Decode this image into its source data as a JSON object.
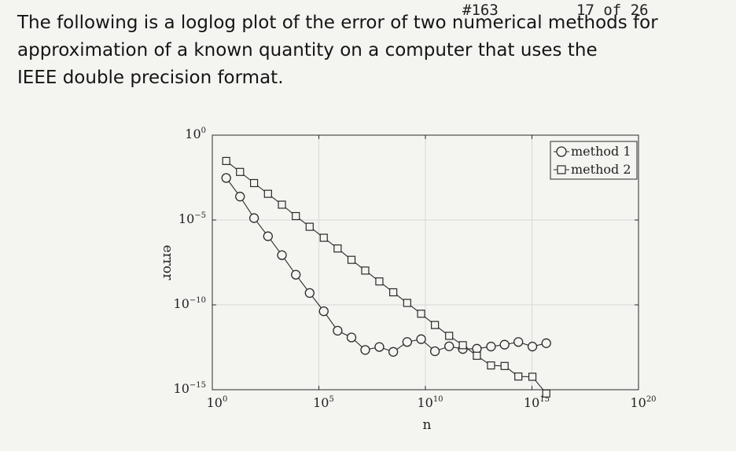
{
  "header": {
    "doc_id": "#163",
    "page_counter": "17 of 26"
  },
  "prose": {
    "lines": [
      "The following is a loglog plot of the error of two numerical methods for",
      "approximation of a known quantity on a computer that uses the",
      "IEEE double precision format."
    ]
  },
  "chart_data": {
    "type": "line",
    "xscale": "log",
    "yscale": "log",
    "xlabel": "n",
    "ylabel": "error",
    "xlim": [
      1,
      1e+20
    ],
    "ylim": [
      1e-15,
      1
    ],
    "xticks": [
      {
        "value": 1,
        "base": "10",
        "exp": "0"
      },
      {
        "value": 100000.0,
        "base": "10",
        "exp": "5"
      },
      {
        "value": 10000000000.0,
        "base": "10",
        "exp": "10"
      },
      {
        "value": 1000000000000000.0,
        "base": "10",
        "exp": "15"
      },
      {
        "value": 1e+20,
        "base": "10",
        "exp": "20"
      }
    ],
    "yticks": [
      {
        "value": 1,
        "base": "10",
        "exp": "0"
      },
      {
        "value": 1e-05,
        "base": "10",
        "exp": "−5"
      },
      {
        "value": 1e-10,
        "base": "10",
        "exp": "−10"
      },
      {
        "value": 1e-15,
        "base": "10",
        "exp": "−15"
      }
    ],
    "grid": true,
    "legend_position": "top-right",
    "series": [
      {
        "name": "method 1",
        "marker": "circle",
        "x": [
          4.5,
          20,
          91,
          410,
          1850,
          8300,
          37000,
          170000,
          760000,
          3400000.0,
          15000000.0,
          69000000.0,
          310000000.0,
          1400000000.0,
          6300000000.0,
          28000000000.0,
          130000000000.0,
          570000000000.0,
          2600000000000.0,
          12000000000000.0,
          52000000000000.0,
          230000000000000.0,
          1050000000000000.0,
          4700000000000000.0
        ],
        "y": [
          0.003,
          0.00024,
          1.3e-05,
          1.1e-06,
          8.5e-08,
          6e-09,
          5e-10,
          4.2e-11,
          3e-12,
          1.2e-12,
          2.2e-13,
          3.3e-13,
          1.7e-13,
          6.5e-13,
          9.5e-13,
          1.85e-13,
          3.6e-13,
          2.5e-13,
          2.6e-13,
          3.5e-13,
          4.5e-13,
          6.5e-13,
          3.5e-13,
          5.5e-13
        ]
      },
      {
        "name": "method 2",
        "marker": "square",
        "x": [
          4.5,
          20,
          91,
          410,
          1850,
          8300,
          37000,
          170000,
          760000,
          3400000.0,
          15000000.0,
          69000000.0,
          310000000.0,
          1400000000.0,
          6300000000.0,
          28000000000.0,
          130000000000.0,
          570000000000.0,
          2600000000000.0,
          12000000000000.0,
          52000000000000.0,
          230000000000000.0,
          1050000000000000.0,
          4700000000000000.0
        ],
        "y": [
          0.03,
          0.0068,
          0.0015,
          0.00035,
          8e-05,
          1.7e-05,
          4e-06,
          9e-07,
          2.1e-07,
          4.5e-08,
          1.05e-08,
          2.4e-09,
          5.5e-10,
          1.3e-10,
          3e-11,
          6.5e-12,
          1.5e-12,
          4.2e-13,
          1e-13,
          2.7e-14,
          2.5e-14,
          6e-15,
          5.8e-15,
          6e-16
        ]
      }
    ],
    "colors": {
      "line": "#2a2a2a",
      "grid": "#d8d8d8",
      "marker_fill": "#f4f4f1"
    }
  }
}
